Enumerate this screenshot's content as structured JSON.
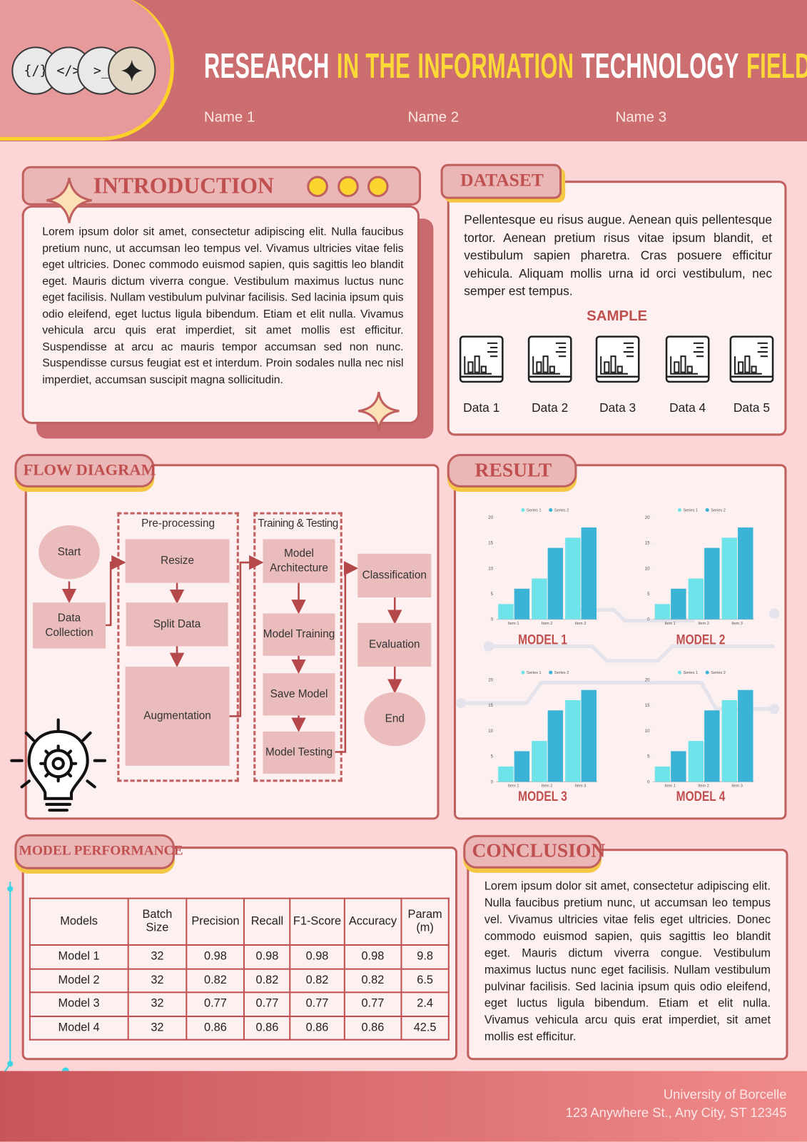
{
  "header": {
    "icons": [
      "{/}",
      "</>",
      ">_"
    ],
    "title_parts": [
      {
        "text": "RESEARCH",
        "highlight": false
      },
      {
        "text": "IN THE",
        "highlight": true
      },
      {
        "text": "INFORMATION",
        "highlight": true
      },
      {
        "text": "TECHNOLOGY",
        "highlight": false
      },
      {
        "text": "FIELD",
        "highlight": true
      }
    ],
    "names": [
      "Name 1",
      "Name 2",
      "Name 3"
    ]
  },
  "introduction": {
    "heading": "INTRODUCTION",
    "text": "Lorem ipsum dolor sit amet, consectetur adipiscing elit. Nulla faucibus pretium nunc, ut accumsan leo tempus vel. Vivamus ultricies vitae felis eget ultricies. Donec commodo euismod sapien, quis sagittis leo blandit eget. Mauris dictum viverra congue. Vestibulum maximus luctus nunc eget facilisis. Nullam vestibulum pulvinar facilisis. Sed lacinia ipsum quis odio eleifend, eget luctus ligula bibendum. Etiam et elit nulla. Vivamus vehicula arcu quis erat imperdiet, sit amet mollis est efficitur. Suspendisse at arcu ac mauris tempor accumsan sed non nunc. Suspendisse cursus feugiat est et interdum. Proin sodales nulla nec nisl imperdiet, accumsan suscipit magna sollicitudin."
  },
  "dataset": {
    "heading": "DATASET",
    "text": "Pellentesque eu risus augue. Aenean quis pellentesque tortor. Aenean pretium risus vitae ipsum blandit, et vestibulum sapien pharetra. Cras posuere efficitur vehicula. Aliquam mollis urna id orci vestibulum, nec semper est tempus.",
    "sample_heading": "SAMPLE",
    "items": [
      "Data 1",
      "Data 2",
      "Data 3",
      "Data 4",
      "Data 5"
    ]
  },
  "flow_diagram": {
    "heading": "FLOW DIAGRAM",
    "groups": [
      "Pre-processing",
      "Training & Testing"
    ],
    "nodes": [
      "Start",
      "Data Collection",
      "Resize",
      "Split Data",
      "Augmentation",
      "Model Architecture",
      "Model Training",
      "Save Model",
      "Model Testing",
      "Classification",
      "Evaluation",
      "End"
    ]
  },
  "result": {
    "heading": "RESULT",
    "charts": [
      {
        "type": "bar",
        "title": "MODEL 1",
        "categories": [
          "Item 1",
          "Item 2",
          "Item 3"
        ],
        "series": [
          {
            "name": "Series 1",
            "color": "#6fe3ea",
            "values": [
              3,
              8,
              16
            ]
          },
          {
            "name": "Series 2",
            "color": "#3ab3d6",
            "values": [
              6,
              14,
              18
            ]
          }
        ],
        "ylim": [
          0,
          20
        ],
        "yticks": [
          0,
          5,
          10,
          15,
          20
        ]
      },
      {
        "type": "bar",
        "title": "MODEL 2",
        "categories": [
          "Item 1",
          "Item 2",
          "Item 3"
        ],
        "series": [
          {
            "name": "Series 1",
            "color": "#6fe3ea",
            "values": [
              3,
              8,
              16
            ]
          },
          {
            "name": "Series 2",
            "color": "#3ab3d6",
            "values": [
              6,
              14,
              18
            ]
          }
        ],
        "ylim": [
          0,
          20
        ],
        "yticks": [
          0,
          5,
          10,
          15,
          20
        ]
      },
      {
        "type": "bar",
        "title": "MODEL 3",
        "categories": [
          "Item 1",
          "Item 2",
          "Item 3"
        ],
        "series": [
          {
            "name": "Series 1",
            "color": "#6fe3ea",
            "values": [
              3,
              8,
              16
            ]
          },
          {
            "name": "Series 2",
            "color": "#3ab3d6",
            "values": [
              6,
              14,
              18
            ]
          }
        ],
        "ylim": [
          0,
          20
        ],
        "yticks": [
          0,
          5,
          10,
          15,
          20
        ]
      },
      {
        "type": "bar",
        "title": "MODEL 4",
        "categories": [
          "Item 1",
          "Item 2",
          "Item 3"
        ],
        "series": [
          {
            "name": "Series 1",
            "color": "#6fe3ea",
            "values": [
              3,
              8,
              16
            ]
          },
          {
            "name": "Series 2",
            "color": "#3ab3d6",
            "values": [
              6,
              14,
              18
            ]
          }
        ],
        "ylim": [
          0,
          20
        ],
        "yticks": [
          0,
          5,
          10,
          15,
          20
        ]
      }
    ]
  },
  "model_performance": {
    "heading": "MODEL PERFORMANCE",
    "table": {
      "columns": [
        "Models",
        "Batch Size",
        "Precision",
        "Recall",
        "F1-Score",
        "Accuracy",
        "Param (m)"
      ],
      "rows": [
        [
          "Model 1",
          32,
          0.98,
          0.98,
          0.98,
          0.98,
          9.8
        ],
        [
          "Model 2",
          32,
          0.82,
          0.82,
          0.82,
          0.82,
          6.5
        ],
        [
          "Model 3",
          32,
          0.77,
          0.77,
          0.77,
          0.77,
          2.4
        ],
        [
          "Model 4",
          32,
          0.86,
          0.86,
          0.86,
          0.86,
          42.5
        ]
      ]
    }
  },
  "conclusion": {
    "heading": "CONCLUSION",
    "text": "Lorem ipsum dolor sit amet, consectetur adipiscing elit. Nulla faucibus pretium nunc, ut accumsan leo tempus vel. Vivamus ultricies vitae felis eget ultricies. Donec commodo euismod sapien, quis sagittis leo blandit eget. Mauris dictum viverra congue. Vestibulum maximus luctus nunc eget facilisis. Nullam vestibulum pulvinar facilisis. Sed lacinia ipsum quis odio eleifend, eget luctus ligula bibendum. Etiam et elit nulla. Vivamus vehicula arcu quis erat imperdiet, sit amet mollis est efficitur."
  },
  "footer": {
    "university": "University of Borcelle",
    "address": "123 Anywhere St., Any City, ST 12345"
  }
}
